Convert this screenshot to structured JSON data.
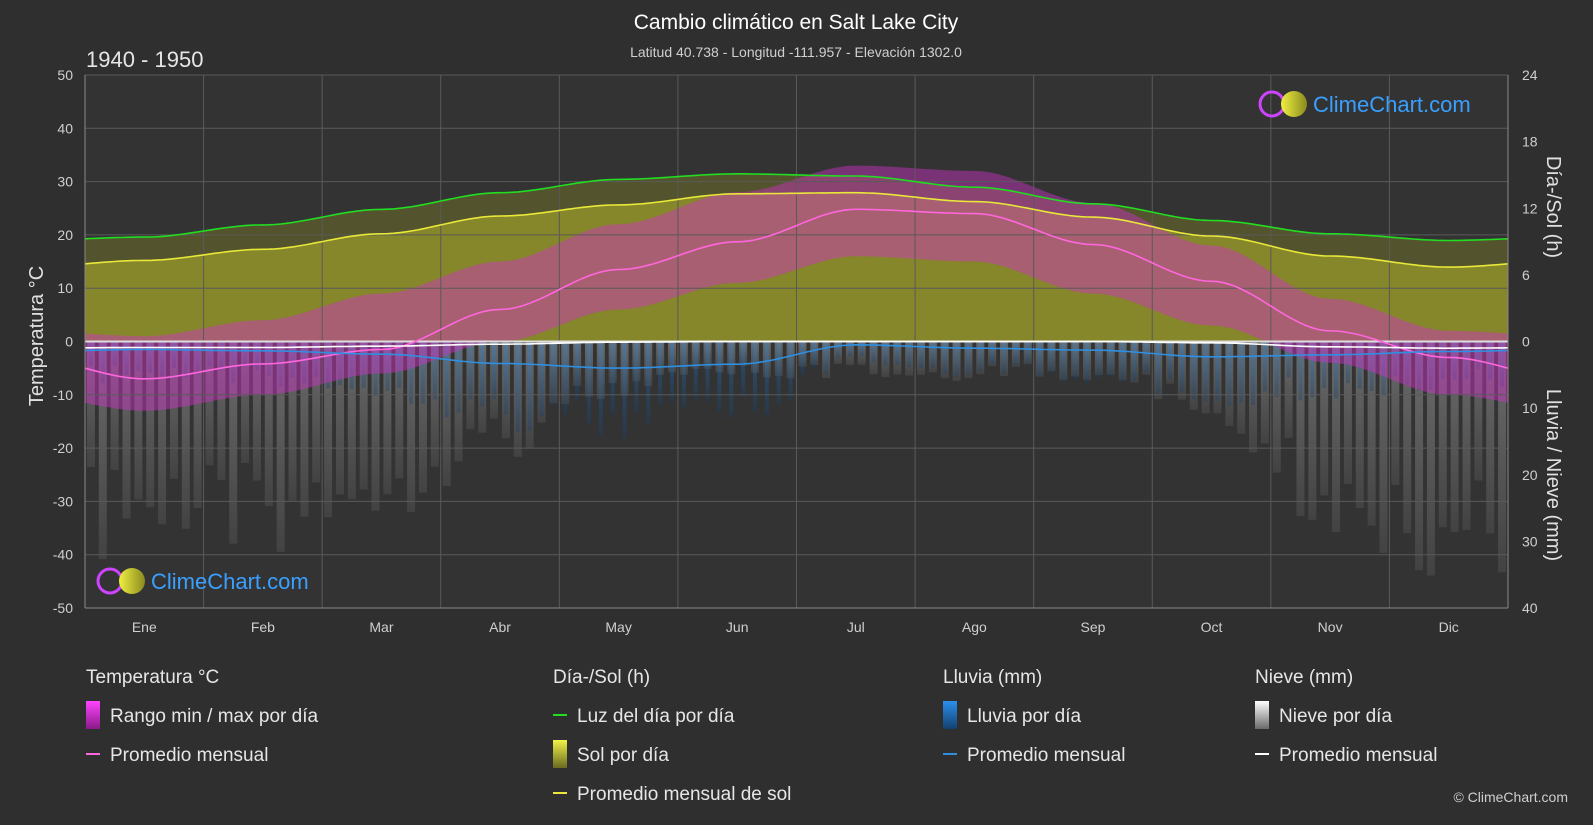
{
  "chart_data": {
    "type": "area",
    "title": "Cambio climático en Salt Lake City",
    "subtitle": "Latitud 40.738 - Longitud -111.957 - Elevación 1302.0",
    "period": "1940 - 1950",
    "categories": [
      "Ene",
      "Feb",
      "Mar",
      "Abr",
      "May",
      "Jun",
      "Jul",
      "Ago",
      "Sep",
      "Oct",
      "Nov",
      "Dic"
    ],
    "y_left": {
      "label": "Temperatura °C",
      "min": -50,
      "max": 50,
      "ticks": [
        50,
        40,
        30,
        20,
        10,
        0,
        -10,
        -20,
        -30,
        -40,
        -50
      ]
    },
    "y_right_top": {
      "label": "Día-/Sol (h)",
      "min": 0,
      "max": 24,
      "ticks": [
        24,
        18,
        12,
        6,
        0
      ]
    },
    "y_right_bottom": {
      "label": "Lluvia / Nieve (mm)",
      "min": 0,
      "max": 40,
      "ticks": [
        10,
        20,
        30,
        40
      ]
    },
    "grid": true,
    "series": [
      {
        "name": "Luz del día por día",
        "unit": "h",
        "color": "#22dd22",
        "values": [
          9.4,
          10.5,
          11.9,
          13.4,
          14.6,
          15.1,
          14.9,
          13.9,
          12.4,
          10.9,
          9.7,
          9.1
        ]
      },
      {
        "name": "Promedio mensual de sol",
        "unit": "h",
        "color": "#e8e83a",
        "values": [
          7.3,
          8.3,
          9.7,
          11.3,
          12.3,
          13.3,
          13.4,
          12.6,
          11.2,
          9.5,
          7.7,
          6.7
        ]
      },
      {
        "name": "Promedio mensual",
        "group": "Temperatura °C",
        "unit": "°C",
        "color": "#ff66dd",
        "values": [
          -7.0,
          -4.2,
          -1.5,
          6.0,
          13.5,
          18.7,
          24.8,
          24.0,
          18.2,
          11.3,
          2.0,
          -3.0
        ]
      },
      {
        "name": "Promedio mensual",
        "group": "Lluvia (mm)",
        "unit": "mm",
        "color": "#2f8fe0",
        "values": [
          1.2,
          1.4,
          1.9,
          3.3,
          4.0,
          3.4,
          0.5,
          1.0,
          1.3,
          2.3,
          2.0,
          1.5
        ]
      },
      {
        "name": "Promedio mensual",
        "group": "Nieve (mm)",
        "unit": "mm",
        "color": "#ffffff",
        "values": [
          0.9,
          0.9,
          0.7,
          0.4,
          0.1,
          0.0,
          0.0,
          0.0,
          0.0,
          0.2,
          0.8,
          1.0
        ]
      }
    ],
    "temp_band": {
      "name": "Rango min / max por día",
      "min": [
        -13,
        -10,
        -6,
        0,
        6,
        11,
        16,
        15,
        9,
        3,
        -4,
        -10
      ],
      "max": [
        1,
        4,
        9,
        15,
        22,
        28,
        33,
        32,
        26,
        18,
        8,
        2
      ]
    },
    "legend": [
      {
        "head": "Temperatura °C",
        "items": [
          {
            "label": "Rango min / max por día",
            "kind": "swatch",
            "color": "#ee22ee"
          },
          {
            "label": "Promedio mensual",
            "kind": "line",
            "color": "#ff66dd"
          }
        ]
      },
      {
        "head": "Día-/Sol (h)",
        "items": [
          {
            "label": "Luz del día por día",
            "kind": "line",
            "color": "#22dd22"
          },
          {
            "label": "Sol por día",
            "kind": "swatch",
            "color": "#d8d830"
          },
          {
            "label": "Promedio mensual de sol",
            "kind": "line",
            "color": "#e8e83a"
          }
        ]
      },
      {
        "head": "Lluvia (mm)",
        "items": [
          {
            "label": "Lluvia por día",
            "kind": "swatch",
            "color": "#1f7fd6"
          },
          {
            "label": "Promedio mensual",
            "kind": "line",
            "color": "#2f8fe0"
          }
        ]
      },
      {
        "head": "Nieve (mm)",
        "items": [
          {
            "label": "Nieve por día",
            "kind": "swatch",
            "color": "#dddddd"
          },
          {
            "label": "Promedio mensual",
            "kind": "line",
            "color": "#ffffff"
          }
        ]
      }
    ]
  },
  "branding": {
    "logo_text": "ClimeChart.com",
    "copyright": "© ClimeChart.com",
    "colors": {
      "accent": "#3aa0ff",
      "logo_ring": "#cc44ff",
      "logo_sun": "#e8e830"
    }
  }
}
